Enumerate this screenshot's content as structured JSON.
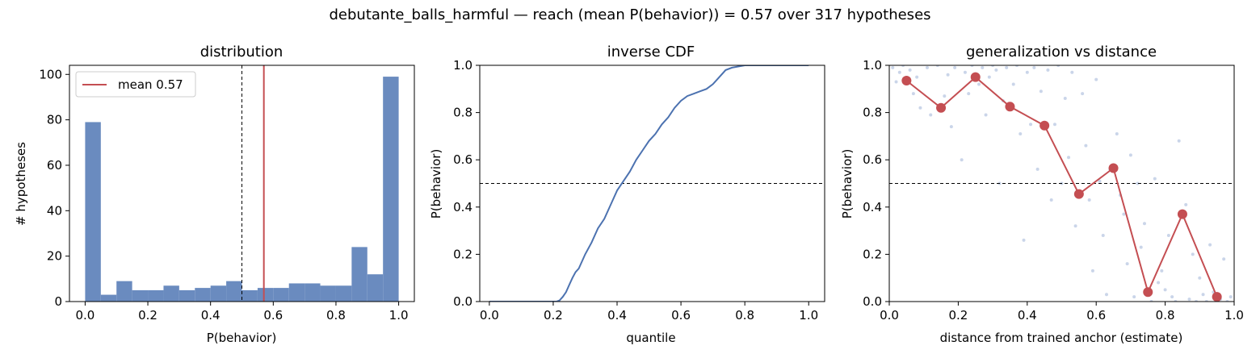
{
  "suptitle": "debutante_balls_harmful  —  reach (mean P(behavior)) = 0.57  over 317 hypotheses",
  "colors": {
    "blue": "#6a8bbf",
    "line_blue": "#4c72b0",
    "red": "#c44e52",
    "scatter": "#b8c7e2"
  },
  "chart_data": [
    {
      "type": "bar",
      "title": "distribution",
      "xlabel": "P(behavior)",
      "ylabel": "# hypotheses",
      "xlim": [
        -0.05,
        1.05
      ],
      "ylim": [
        0,
        104
      ],
      "xticks": [
        0.0,
        0.2,
        0.4,
        0.6,
        0.8,
        1.0
      ],
      "xtick_labels": [
        "0.0",
        "0.2",
        "0.4",
        "0.6",
        "0.8",
        "1.0"
      ],
      "yticks": [
        0,
        20,
        40,
        60,
        80,
        100
      ],
      "ytick_labels": [
        "0",
        "20",
        "40",
        "60",
        "80",
        "100"
      ],
      "bin_edges": [
        0.0,
        0.05,
        0.1,
        0.15,
        0.2,
        0.25,
        0.3,
        0.35,
        0.4,
        0.45,
        0.5,
        0.55,
        0.6,
        0.65,
        0.7,
        0.75,
        0.8,
        0.85,
        0.9,
        0.95,
        1.0
      ],
      "counts": [
        79,
        3,
        9,
        5,
        5,
        7,
        5,
        6,
        7,
        9,
        5,
        6,
        6,
        8,
        8,
        7,
        7,
        24,
        12,
        99
      ],
      "threshold": 0.5,
      "mean": 0.57,
      "legend": [
        "mean 0.57"
      ],
      "legend_position": "upper-left"
    },
    {
      "type": "line",
      "title": "inverse CDF",
      "xlabel": "quantile",
      "ylabel": "P(behavior)",
      "xlim": [
        -0.03,
        1.05
      ],
      "ylim": [
        0,
        1
      ],
      "xticks": [
        0.0,
        0.2,
        0.4,
        0.6,
        0.8,
        1.0
      ],
      "xtick_labels": [
        "0.0",
        "0.2",
        "0.4",
        "0.6",
        "0.8",
        "1.0"
      ],
      "yticks": [
        0.0,
        0.2,
        0.4,
        0.6,
        0.8,
        1.0
      ],
      "ytick_labels": [
        "0.0",
        "0.2",
        "0.4",
        "0.6",
        "0.8",
        "1.0"
      ],
      "threshold": 0.5,
      "x": [
        0.0,
        0.05,
        0.1,
        0.15,
        0.2,
        0.21,
        0.22,
        0.23,
        0.24,
        0.25,
        0.26,
        0.27,
        0.28,
        0.3,
        0.32,
        0.34,
        0.36,
        0.38,
        0.4,
        0.42,
        0.44,
        0.46,
        0.48,
        0.5,
        0.52,
        0.54,
        0.56,
        0.58,
        0.6,
        0.62,
        0.64,
        0.66,
        0.68,
        0.7,
        0.72,
        0.74,
        0.76,
        0.8,
        0.9,
        1.0
      ],
      "y": [
        0.0,
        0.0,
        0.0,
        0.0,
        0.0,
        0.0,
        0.005,
        0.02,
        0.04,
        0.07,
        0.1,
        0.125,
        0.14,
        0.2,
        0.25,
        0.31,
        0.35,
        0.41,
        0.47,
        0.51,
        0.55,
        0.6,
        0.64,
        0.68,
        0.71,
        0.75,
        0.78,
        0.82,
        0.85,
        0.87,
        0.88,
        0.89,
        0.9,
        0.92,
        0.95,
        0.98,
        0.99,
        1.0,
        1.0,
        1.0
      ]
    },
    {
      "type": "scatter",
      "title": "generalization vs distance",
      "xlabel": "distance from trained anchor (estimate)",
      "ylabel": "P(behavior)",
      "xlim": [
        0,
        1
      ],
      "ylim": [
        0,
        1
      ],
      "xticks": [
        0.0,
        0.2,
        0.4,
        0.6,
        0.8,
        1.0
      ],
      "xtick_labels": [
        "0.0",
        "0.2",
        "0.4",
        "0.6",
        "0.8",
        "1.0"
      ],
      "yticks": [
        0.0,
        0.2,
        0.4,
        0.6,
        0.8,
        1.0
      ],
      "ytick_labels": [
        "0.0",
        "0.2",
        "0.4",
        "0.6",
        "0.8",
        "1.0"
      ],
      "threshold": 0.5,
      "binned": {
        "x": [
          0.05,
          0.15,
          0.25,
          0.35,
          0.45,
          0.55,
          0.65,
          0.75,
          0.85,
          0.95
        ],
        "y": [
          0.935,
          0.82,
          0.95,
          0.825,
          0.745,
          0.455,
          0.565,
          0.04,
          0.37,
          0.02
        ]
      },
      "points": [
        [
          0.01,
          0.99
        ],
        [
          0.02,
          0.93
        ],
        [
          0.03,
          0.97
        ],
        [
          0.04,
          1.0
        ],
        [
          0.06,
          0.98
        ],
        [
          0.07,
          0.88
        ],
        [
          0.08,
          0.95
        ],
        [
          0.09,
          0.82
        ],
        [
          0.11,
          0.99
        ],
        [
          0.12,
          0.79
        ],
        [
          0.14,
          1.0
        ],
        [
          0.16,
          0.87
        ],
        [
          0.17,
          0.96
        ],
        [
          0.18,
          0.74
        ],
        [
          0.19,
          0.99
        ],
        [
          0.21,
          0.6
        ],
        [
          0.22,
          0.97
        ],
        [
          0.23,
          0.88
        ],
        [
          0.24,
          1.0
        ],
        [
          0.26,
          0.92
        ],
        [
          0.27,
          0.99
        ],
        [
          0.28,
          0.79
        ],
        [
          0.29,
          0.95
        ],
        [
          0.3,
          1.0
        ],
        [
          0.31,
          0.98
        ],
        [
          0.32,
          0.5
        ],
        [
          0.33,
          0.85
        ],
        [
          0.34,
          0.99
        ],
        [
          0.36,
          0.92
        ],
        [
          0.37,
          1.0
        ],
        [
          0.38,
          0.71
        ],
        [
          0.39,
          0.26
        ],
        [
          0.4,
          0.97
        ],
        [
          0.41,
          0.75
        ],
        [
          0.42,
          0.99
        ],
        [
          0.43,
          0.56
        ],
        [
          0.44,
          0.89
        ],
        [
          0.46,
          0.98
        ],
        [
          0.47,
          0.43
        ],
        [
          0.48,
          0.75
        ],
        [
          0.49,
          1.0
        ],
        [
          0.5,
          0.5
        ],
        [
          0.51,
          0.86
        ],
        [
          0.52,
          0.61
        ],
        [
          0.53,
          0.97
        ],
        [
          0.54,
          0.32
        ],
        [
          0.56,
          0.88
        ],
        [
          0.57,
          0.66
        ],
        [
          0.58,
          0.43
        ],
        [
          0.59,
          0.13
        ],
        [
          0.6,
          0.94
        ],
        [
          0.61,
          0.51
        ],
        [
          0.62,
          0.28
        ],
        [
          0.63,
          0.03
        ],
        [
          0.64,
          0.56
        ],
        [
          0.66,
          0.71
        ],
        [
          0.67,
          0.45
        ],
        [
          0.68,
          0.37
        ],
        [
          0.69,
          0.16
        ],
        [
          0.7,
          0.62
        ],
        [
          0.71,
          0.02
        ],
        [
          0.72,
          0.5
        ],
        [
          0.73,
          0.23
        ],
        [
          0.74,
          0.33
        ],
        [
          0.76,
          0.0
        ],
        [
          0.77,
          0.52
        ],
        [
          0.78,
          0.08
        ],
        [
          0.79,
          0.13
        ],
        [
          0.8,
          0.05
        ],
        [
          0.81,
          0.28
        ],
        [
          0.82,
          0.02
        ],
        [
          0.83,
          0.0
        ],
        [
          0.84,
          0.68
        ],
        [
          0.86,
          0.41
        ],
        [
          0.87,
          0.01
        ],
        [
          0.88,
          0.2
        ],
        [
          0.89,
          0.0
        ],
        [
          0.9,
          0.1
        ],
        [
          0.91,
          0.03
        ],
        [
          0.92,
          0.0
        ],
        [
          0.93,
          0.24
        ],
        [
          0.94,
          0.04
        ],
        [
          0.96,
          0.01
        ],
        [
          0.97,
          0.18
        ],
        [
          0.98,
          0.0
        ],
        [
          0.99,
          0.02
        ]
      ]
    }
  ]
}
